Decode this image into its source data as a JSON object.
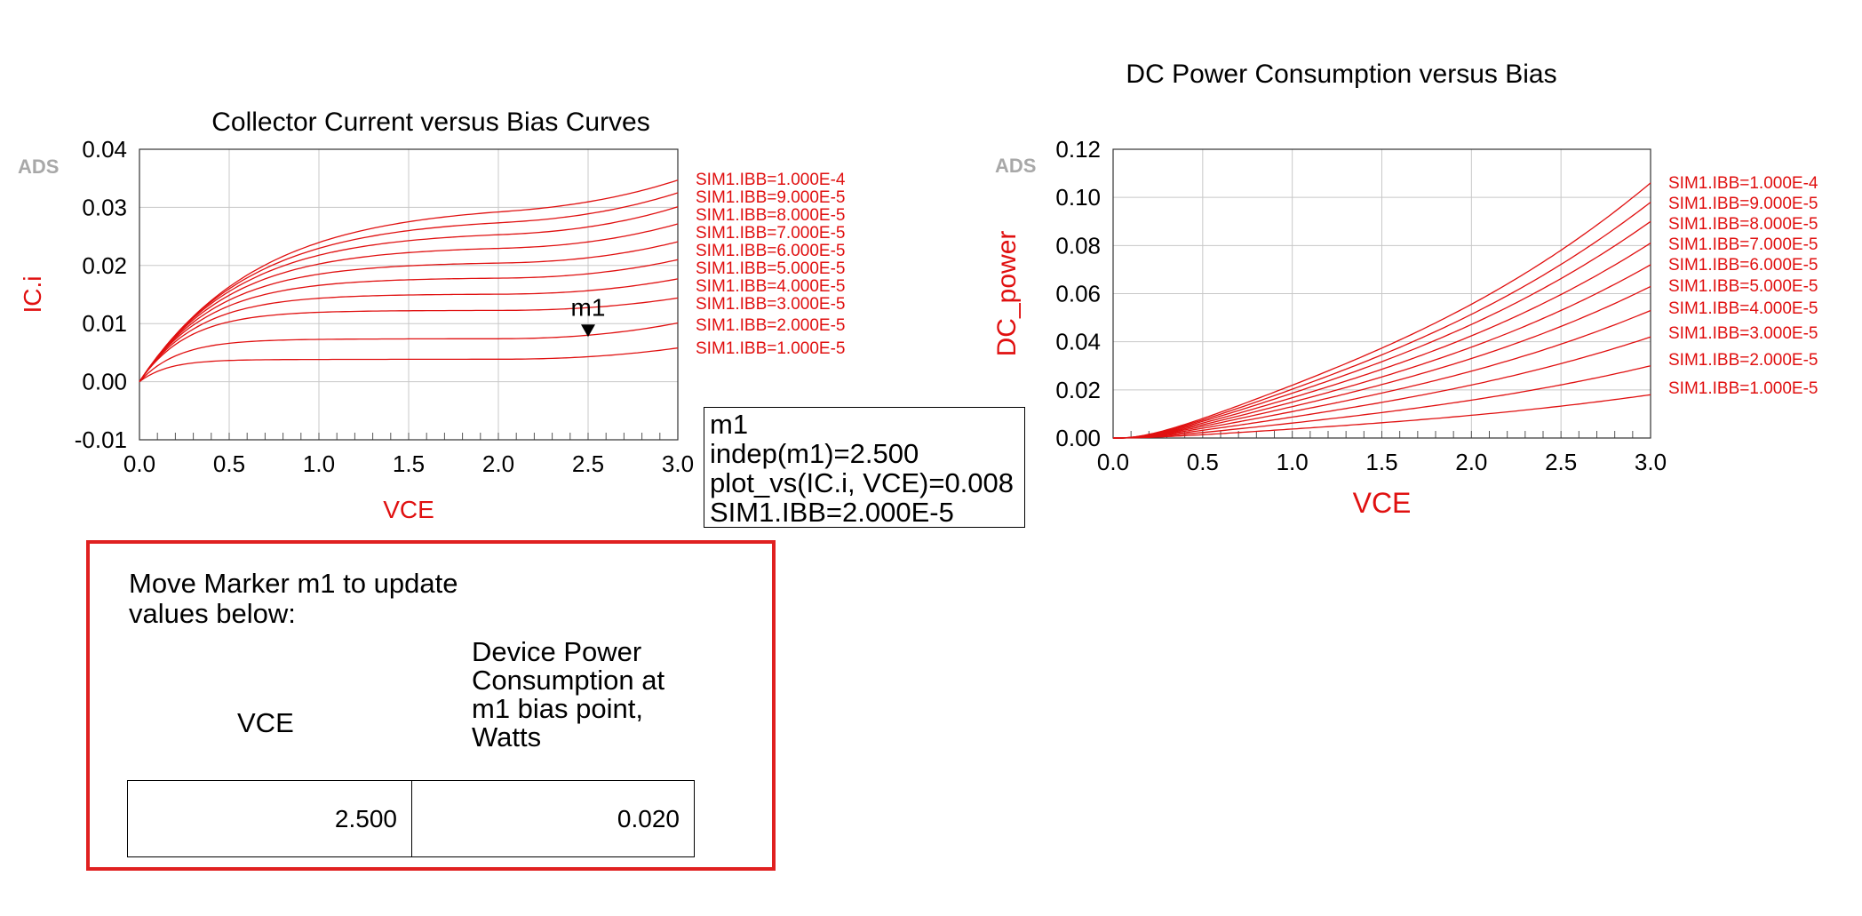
{
  "chart_data": [
    {
      "type": "line",
      "title": "Collector Current versus Bias Curves",
      "watermark": "ADS",
      "xlabel": "VCE",
      "ylabel": "IC.i",
      "xlim": [
        0.0,
        3.0
      ],
      "ylim": [
        -0.01,
        0.04
      ],
      "xticks": [
        "0.0",
        "0.5",
        "1.0",
        "1.5",
        "2.0",
        "2.5",
        "3.0"
      ],
      "yticks": [
        "-0.01",
        "0.00",
        "0.01",
        "0.02",
        "0.03",
        "0.04"
      ],
      "grid": true,
      "color": "#e01010",
      "series": [
        {
          "name": "SIM1.IBB=1.000E-4",
          "sat": 0.0305,
          "end": 0.035
        },
        {
          "name": "SIM1.IBB=9.000E-5",
          "sat": 0.0282,
          "end": 0.0327
        },
        {
          "name": "SIM1.IBB=8.000E-5",
          "sat": 0.0258,
          "end": 0.0302
        },
        {
          "name": "SIM1.IBB=7.000E-5",
          "sat": 0.0232,
          "end": 0.0272
        },
        {
          "name": "SIM1.IBB=6.000E-5",
          "sat": 0.0205,
          "end": 0.0241
        },
        {
          "name": "SIM1.IBB=5.000E-5",
          "sat": 0.0178,
          "end": 0.021
        },
        {
          "name": "SIM1.IBB=4.000E-5",
          "sat": 0.015,
          "end": 0.0177
        },
        {
          "name": "SIM1.IBB=3.000E-5",
          "sat": 0.0122,
          "end": 0.0144
        },
        {
          "name": "SIM1.IBB=2.000E-5",
          "sat": 0.0073,
          "end": 0.0101
        },
        {
          "name": "SIM1.IBB=1.000E-5",
          "sat": 0.0038,
          "end": 0.0058
        }
      ],
      "marker": {
        "name": "m1",
        "x": 2.5,
        "y": 0.008
      }
    },
    {
      "type": "line",
      "title": "DC Power Consumption versus Bias",
      "watermark": "ADS",
      "xlabel": "VCE",
      "ylabel": "DC_power",
      "xlim": [
        0.0,
        3.0
      ],
      "ylim": [
        0.0,
        0.12
      ],
      "xticks": [
        "0.0",
        "0.5",
        "1.0",
        "1.5",
        "2.0",
        "2.5",
        "3.0"
      ],
      "yticks": [
        "0.00",
        "0.02",
        "0.04",
        "0.06",
        "0.08",
        "0.10",
        "0.12"
      ],
      "grid": true,
      "color": "#e01010",
      "series": [
        {
          "name": "SIM1.IBB=1.000E-4",
          "end": 0.106
        },
        {
          "name": "SIM1.IBB=9.000E-5",
          "end": 0.098
        },
        {
          "name": "SIM1.IBB=8.000E-5",
          "end": 0.09
        },
        {
          "name": "SIM1.IBB=7.000E-5",
          "end": 0.081
        },
        {
          "name": "SIM1.IBB=6.000E-5",
          "end": 0.072
        },
        {
          "name": "SIM1.IBB=5.000E-5",
          "end": 0.063
        },
        {
          "name": "SIM1.IBB=4.000E-5",
          "end": 0.053
        },
        {
          "name": "SIM1.IBB=3.000E-5",
          "end": 0.042
        },
        {
          "name": "SIM1.IBB=2.000E-5",
          "end": 0.03
        },
        {
          "name": "SIM1.IBB=1.000E-5",
          "end": 0.018
        }
      ]
    }
  ],
  "marker_readout": {
    "line1": "m1",
    "line2": "indep(m1)=2.500",
    "line3": "plot_vs(IC.i, VCE)=0.008",
    "line4": "SIM1.IBB=2.000E-5"
  },
  "panel": {
    "instruction_line1": "Move Marker m1 to update",
    "instruction_line2": "values below:",
    "col1_header": "VCE",
    "col2_header_lines": [
      "Device Power",
      "Consumption at",
      "m1 bias point,",
      "Watts"
    ],
    "col1_value": "2.500",
    "col2_value": "0.020"
  }
}
